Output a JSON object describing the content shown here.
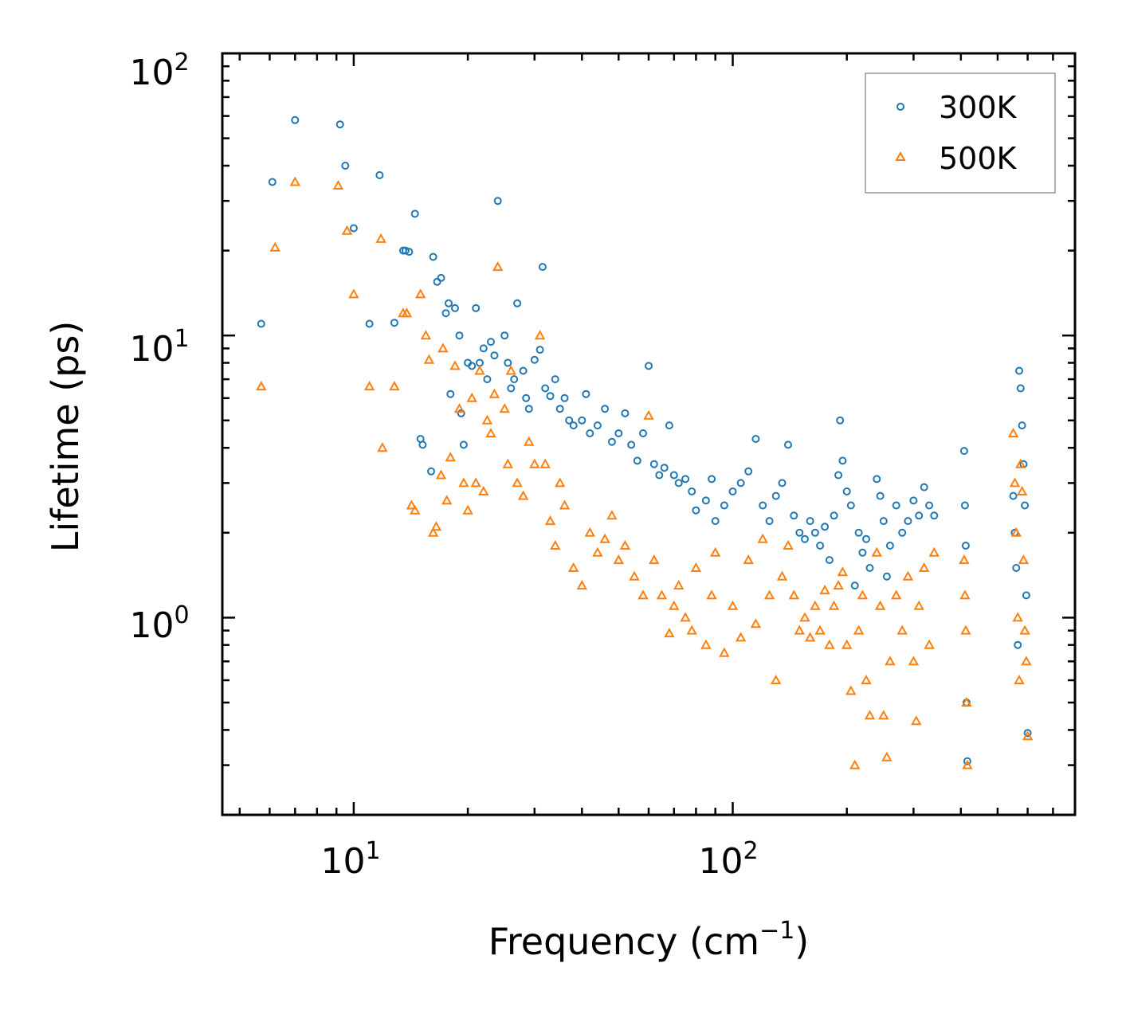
{
  "chart_data": {
    "type": "scatter",
    "xscale": "log",
    "yscale": "log",
    "xlim": [
      4.5,
      800
    ],
    "ylim": [
      0.2,
      100
    ],
    "xlabel": "Frequency (cm",
    "xlabel_exp": "−1",
    "xlabel_close": ")",
    "ylabel": "Lifetime (ps)",
    "x_ticks": [
      {
        "base": "10",
        "exp": "1",
        "value": 10
      },
      {
        "base": "10",
        "exp": "2",
        "value": 100
      }
    ],
    "y_ticks": [
      {
        "base": "10",
        "exp": "0",
        "value": 1
      },
      {
        "base": "10",
        "exp": "1",
        "value": 10
      },
      {
        "base": "10",
        "exp": "2",
        "value": 100
      }
    ],
    "legend_position": "top-right",
    "series": [
      {
        "name": "300K",
        "marker": "circle",
        "color": "#1f77b4",
        "points": [
          [
            5.7,
            11
          ],
          [
            6.1,
            35
          ],
          [
            7,
            58
          ],
          [
            9.2,
            56
          ],
          [
            9.5,
            40
          ],
          [
            10,
            24
          ],
          [
            11,
            11
          ],
          [
            11.7,
            37
          ],
          [
            12.8,
            11.1
          ],
          [
            13.5,
            20
          ],
          [
            13.7,
            20
          ],
          [
            14,
            19.8
          ],
          [
            14.5,
            27
          ],
          [
            15,
            4.3
          ],
          [
            15.2,
            4.1
          ],
          [
            16,
            3.3
          ],
          [
            16.2,
            19
          ],
          [
            16.6,
            15.5
          ],
          [
            17,
            16
          ],
          [
            17.5,
            12
          ],
          [
            17.8,
            13
          ],
          [
            18,
            6.2
          ],
          [
            18.5,
            12.5
          ],
          [
            19,
            10
          ],
          [
            19.2,
            5.3
          ],
          [
            19.5,
            4.1
          ],
          [
            20,
            8
          ],
          [
            20.5,
            7.8
          ],
          [
            21,
            12.5
          ],
          [
            21.5,
            8
          ],
          [
            22,
            9
          ],
          [
            22.5,
            7
          ],
          [
            23,
            9.5
          ],
          [
            23.5,
            8.5
          ],
          [
            24,
            30
          ],
          [
            25,
            10
          ],
          [
            25.5,
            8
          ],
          [
            26,
            6.5
          ],
          [
            26.5,
            7
          ],
          [
            27,
            13
          ],
          [
            28,
            7.5
          ],
          [
            28.5,
            6
          ],
          [
            29,
            5.5
          ],
          [
            30,
            8.2
          ],
          [
            31,
            8.9
          ],
          [
            31.5,
            17.5
          ],
          [
            32,
            6.5
          ],
          [
            33,
            6.1
          ],
          [
            34,
            7
          ],
          [
            35,
            5.5
          ],
          [
            36,
            6
          ],
          [
            37,
            5
          ],
          [
            38,
            4.8
          ],
          [
            40,
            5
          ],
          [
            41,
            6.2
          ],
          [
            42,
            4.5
          ],
          [
            44,
            4.8
          ],
          [
            46,
            5.5
          ],
          [
            48,
            4.2
          ],
          [
            50,
            4.5
          ],
          [
            52,
            5.3
          ],
          [
            54,
            4.1
          ],
          [
            56,
            3.6
          ],
          [
            58,
            4.5
          ],
          [
            60,
            7.8
          ],
          [
            62,
            3.5
          ],
          [
            64,
            3.2
          ],
          [
            66,
            3.4
          ],
          [
            68,
            4.8
          ],
          [
            70,
            3.2
          ],
          [
            72,
            3
          ],
          [
            75,
            3.1
          ],
          [
            78,
            2.8
          ],
          [
            80,
            2.4
          ],
          [
            85,
            2.6
          ],
          [
            88,
            3.1
          ],
          [
            90,
            2.2
          ],
          [
            95,
            2.5
          ],
          [
            100,
            2.8
          ],
          [
            105,
            3
          ],
          [
            110,
            3.3
          ],
          [
            115,
            4.3
          ],
          [
            120,
            2.5
          ],
          [
            125,
            2.2
          ],
          [
            130,
            2.7
          ],
          [
            135,
            3
          ],
          [
            140,
            4.1
          ],
          [
            145,
            2.3
          ],
          [
            150,
            2
          ],
          [
            155,
            1.9
          ],
          [
            160,
            2.2
          ],
          [
            165,
            2
          ],
          [
            170,
            1.8
          ],
          [
            175,
            2.1
          ],
          [
            180,
            1.6
          ],
          [
            185,
            2.3
          ],
          [
            190,
            3.2
          ],
          [
            192,
            5
          ],
          [
            195,
            3.6
          ],
          [
            200,
            2.8
          ],
          [
            205,
            2.5
          ],
          [
            210,
            1.3
          ],
          [
            215,
            2
          ],
          [
            220,
            1.7
          ],
          [
            225,
            1.9
          ],
          [
            230,
            1.5
          ],
          [
            240,
            3.1
          ],
          [
            245,
            2.7
          ],
          [
            250,
            2.2
          ],
          [
            255,
            1.4
          ],
          [
            260,
            1.8
          ],
          [
            270,
            2.5
          ],
          [
            280,
            2
          ],
          [
            290,
            2.2
          ],
          [
            300,
            2.6
          ],
          [
            310,
            2.3
          ],
          [
            320,
            2.9
          ],
          [
            330,
            2.5
          ],
          [
            340,
            2.3
          ],
          [
            408,
            3.9
          ],
          [
            410,
            2.5
          ],
          [
            412,
            1.8
          ],
          [
            414,
            0.5
          ],
          [
            416,
            0.31
          ],
          [
            550,
            2.7
          ],
          [
            555,
            2
          ],
          [
            560,
            1.5
          ],
          [
            565,
            0.8
          ],
          [
            570,
            7.5
          ],
          [
            575,
            6.5
          ],
          [
            580,
            4.8
          ],
          [
            585,
            3.5
          ],
          [
            590,
            2.5
          ],
          [
            595,
            1.2
          ],
          [
            600,
            0.39
          ]
        ]
      },
      {
        "name": "500K",
        "marker": "triangle",
        "color": "#ff7f0e",
        "points": [
          [
            5.7,
            6.6
          ],
          [
            6.2,
            20.5
          ],
          [
            7,
            35
          ],
          [
            9.1,
            34
          ],
          [
            9.6,
            23.5
          ],
          [
            10,
            14
          ],
          [
            11,
            6.6
          ],
          [
            11.8,
            22
          ],
          [
            11.9,
            4
          ],
          [
            12.8,
            6.6
          ],
          [
            13.5,
            12
          ],
          [
            13.8,
            12
          ],
          [
            14.2,
            2.5
          ],
          [
            14.5,
            2.4
          ],
          [
            15,
            14
          ],
          [
            15.5,
            10
          ],
          [
            15.8,
            8.2
          ],
          [
            16.2,
            2
          ],
          [
            16.5,
            2.1
          ],
          [
            17,
            3.2
          ],
          [
            17.2,
            9
          ],
          [
            17.6,
            2.6
          ],
          [
            18,
            3.7
          ],
          [
            18.5,
            7.8
          ],
          [
            19,
            5.5
          ],
          [
            19.5,
            3
          ],
          [
            20,
            2.4
          ],
          [
            20.5,
            6
          ],
          [
            21,
            3
          ],
          [
            21.5,
            7.5
          ],
          [
            22,
            2.8
          ],
          [
            22.5,
            5
          ],
          [
            23,
            4.5
          ],
          [
            23.5,
            6.2
          ],
          [
            24,
            17.5
          ],
          [
            25,
            5.5
          ],
          [
            25.5,
            3.5
          ],
          [
            26,
            7.5
          ],
          [
            27,
            3
          ],
          [
            28,
            2.7
          ],
          [
            29,
            4.2
          ],
          [
            30,
            3.5
          ],
          [
            31,
            10
          ],
          [
            32,
            3.5
          ],
          [
            33,
            2.2
          ],
          [
            34,
            1.8
          ],
          [
            35,
            3
          ],
          [
            36,
            2.5
          ],
          [
            38,
            1.5
          ],
          [
            40,
            1.3
          ],
          [
            42,
            2
          ],
          [
            44,
            1.7
          ],
          [
            46,
            1.9
          ],
          [
            48,
            2.3
          ],
          [
            50,
            1.6
          ],
          [
            52,
            1.8
          ],
          [
            55,
            1.4
          ],
          [
            58,
            1.2
          ],
          [
            60,
            5.2
          ],
          [
            62,
            1.6
          ],
          [
            65,
            1.2
          ],
          [
            68,
            0.88
          ],
          [
            70,
            1.1
          ],
          [
            72,
            1.3
          ],
          [
            75,
            1
          ],
          [
            78,
            0.9
          ],
          [
            80,
            1.5
          ],
          [
            85,
            0.8
          ],
          [
            88,
            1.2
          ],
          [
            90,
            1.7
          ],
          [
            95,
            0.75
          ],
          [
            100,
            1.1
          ],
          [
            105,
            0.85
          ],
          [
            110,
            1.6
          ],
          [
            115,
            0.95
          ],
          [
            120,
            1.9
          ],
          [
            125,
            1.2
          ],
          [
            130,
            0.6
          ],
          [
            135,
            1.4
          ],
          [
            140,
            1.8
          ],
          [
            145,
            1.2
          ],
          [
            150,
            0.9
          ],
          [
            155,
            1
          ],
          [
            160,
            0.85
          ],
          [
            165,
            1.1
          ],
          [
            170,
            0.9
          ],
          [
            175,
            1.25
          ],
          [
            180,
            0.8
          ],
          [
            185,
            1.1
          ],
          [
            190,
            1.3
          ],
          [
            195,
            1.45
          ],
          [
            200,
            0.8
          ],
          [
            205,
            0.55
          ],
          [
            210,
            0.3
          ],
          [
            215,
            0.9
          ],
          [
            220,
            1.2
          ],
          [
            225,
            0.6
          ],
          [
            230,
            0.45
          ],
          [
            240,
            1.7
          ],
          [
            245,
            1.1
          ],
          [
            250,
            0.45
          ],
          [
            255,
            0.32
          ],
          [
            260,
            0.7
          ],
          [
            270,
            1.2
          ],
          [
            280,
            0.9
          ],
          [
            290,
            1.4
          ],
          [
            300,
            0.7
          ],
          [
            305,
            0.43
          ],
          [
            310,
            1.1
          ],
          [
            320,
            1.5
          ],
          [
            330,
            0.8
          ],
          [
            340,
            1.7
          ],
          [
            408,
            1.6
          ],
          [
            410,
            1.2
          ],
          [
            412,
            0.9
          ],
          [
            414,
            0.5
          ],
          [
            416,
            0.3
          ],
          [
            550,
            4.5
          ],
          [
            555,
            3
          ],
          [
            560,
            2
          ],
          [
            565,
            1
          ],
          [
            570,
            0.6
          ],
          [
            575,
            3.5
          ],
          [
            580,
            2.8
          ],
          [
            585,
            1.6
          ],
          [
            590,
            0.9
          ],
          [
            595,
            0.7
          ],
          [
            600,
            0.38
          ]
        ]
      }
    ]
  }
}
